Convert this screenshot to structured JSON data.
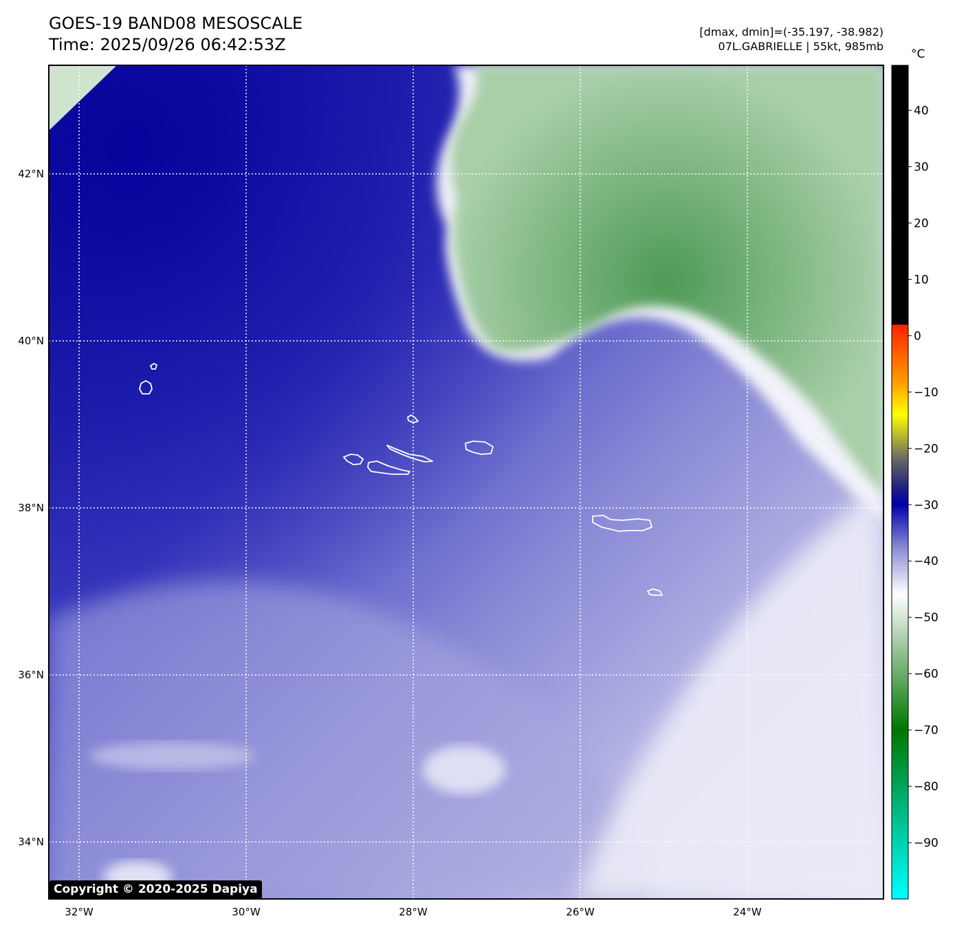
{
  "header": {
    "title_line1": "GOES-19 BAND08 MESOSCALE",
    "title_line2": "Time: 2025/09/26 06:42:53Z",
    "range_text": "[dmax, dmin]=(-35.197, -38.982)",
    "storm_text": "07L.GABRIELLE | 55kt, 985mb"
  },
  "map": {
    "lon_labels": [
      "32°W",
      "30°W",
      "28°W",
      "26°W",
      "24°W"
    ],
    "lat_labels": [
      "42°N",
      "40°N",
      "38°N",
      "36°N",
      "34°N"
    ],
    "coastline_color": "#ffffff",
    "grid_style": "dotted white"
  },
  "colorbar": {
    "unit": "°C",
    "tick_labels": [
      "40",
      "30",
      "20",
      "10",
      "0",
      "−10",
      "−20",
      "−30",
      "−40",
      "−50",
      "−60",
      "−70",
      "−80",
      "−90"
    ],
    "color_stops": [
      {
        "value": 48,
        "color": "#000000"
      },
      {
        "value": 2,
        "color": "#000000"
      },
      {
        "value": 1.9,
        "color": "#ff2200"
      },
      {
        "value": -8,
        "color": "#ff9900"
      },
      {
        "value": -14,
        "color": "#ffff00"
      },
      {
        "value": -22,
        "color": "#666666"
      },
      {
        "value": -27,
        "color": "#202080"
      },
      {
        "value": -30,
        "color": "#0000aa"
      },
      {
        "value": -38,
        "color": "#9090d8"
      },
      {
        "value": -46,
        "color": "#ffffff"
      },
      {
        "value": -55,
        "color": "#9fc79f"
      },
      {
        "value": -70,
        "color": "#007700"
      },
      {
        "value": -85,
        "color": "#00bb88"
      },
      {
        "value": -100,
        "color": "#00ffff"
      }
    ]
  },
  "footer": {
    "copyright": "Copyright © 2020-2025 Dapiya"
  }
}
